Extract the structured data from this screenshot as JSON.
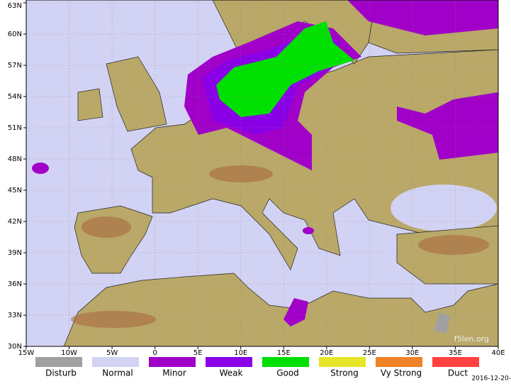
{
  "map": {
    "lat_ticks": [
      "63N",
      "60N",
      "57N",
      "54N",
      "51N",
      "48N",
      "45N",
      "42N",
      "39N",
      "36N",
      "33N",
      "30N"
    ],
    "lon_ticks": [
      "15W",
      "10W",
      "5W",
      "0",
      "5E",
      "10E",
      "15E",
      "20E",
      "25E",
      "30E",
      "35E",
      "40E"
    ],
    "legend": [
      {
        "label": "Disturb",
        "color": "#a0a0a0"
      },
      {
        "label": "Normal",
        "color": "#d2d2f4"
      },
      {
        "label": "Minor",
        "color": "#a000c8"
      },
      {
        "label": "Weak",
        "color": "#8a00e6"
      },
      {
        "label": "Good",
        "color": "#00e000"
      },
      {
        "label": "Strong",
        "color": "#e6e628"
      },
      {
        "label": "Vy Strong",
        "color": "#f08228"
      },
      {
        "label": "Duct",
        "color": "#ff4040"
      }
    ],
    "watermark": "f5len.org",
    "timestamp": "2016-12-20-"
  }
}
